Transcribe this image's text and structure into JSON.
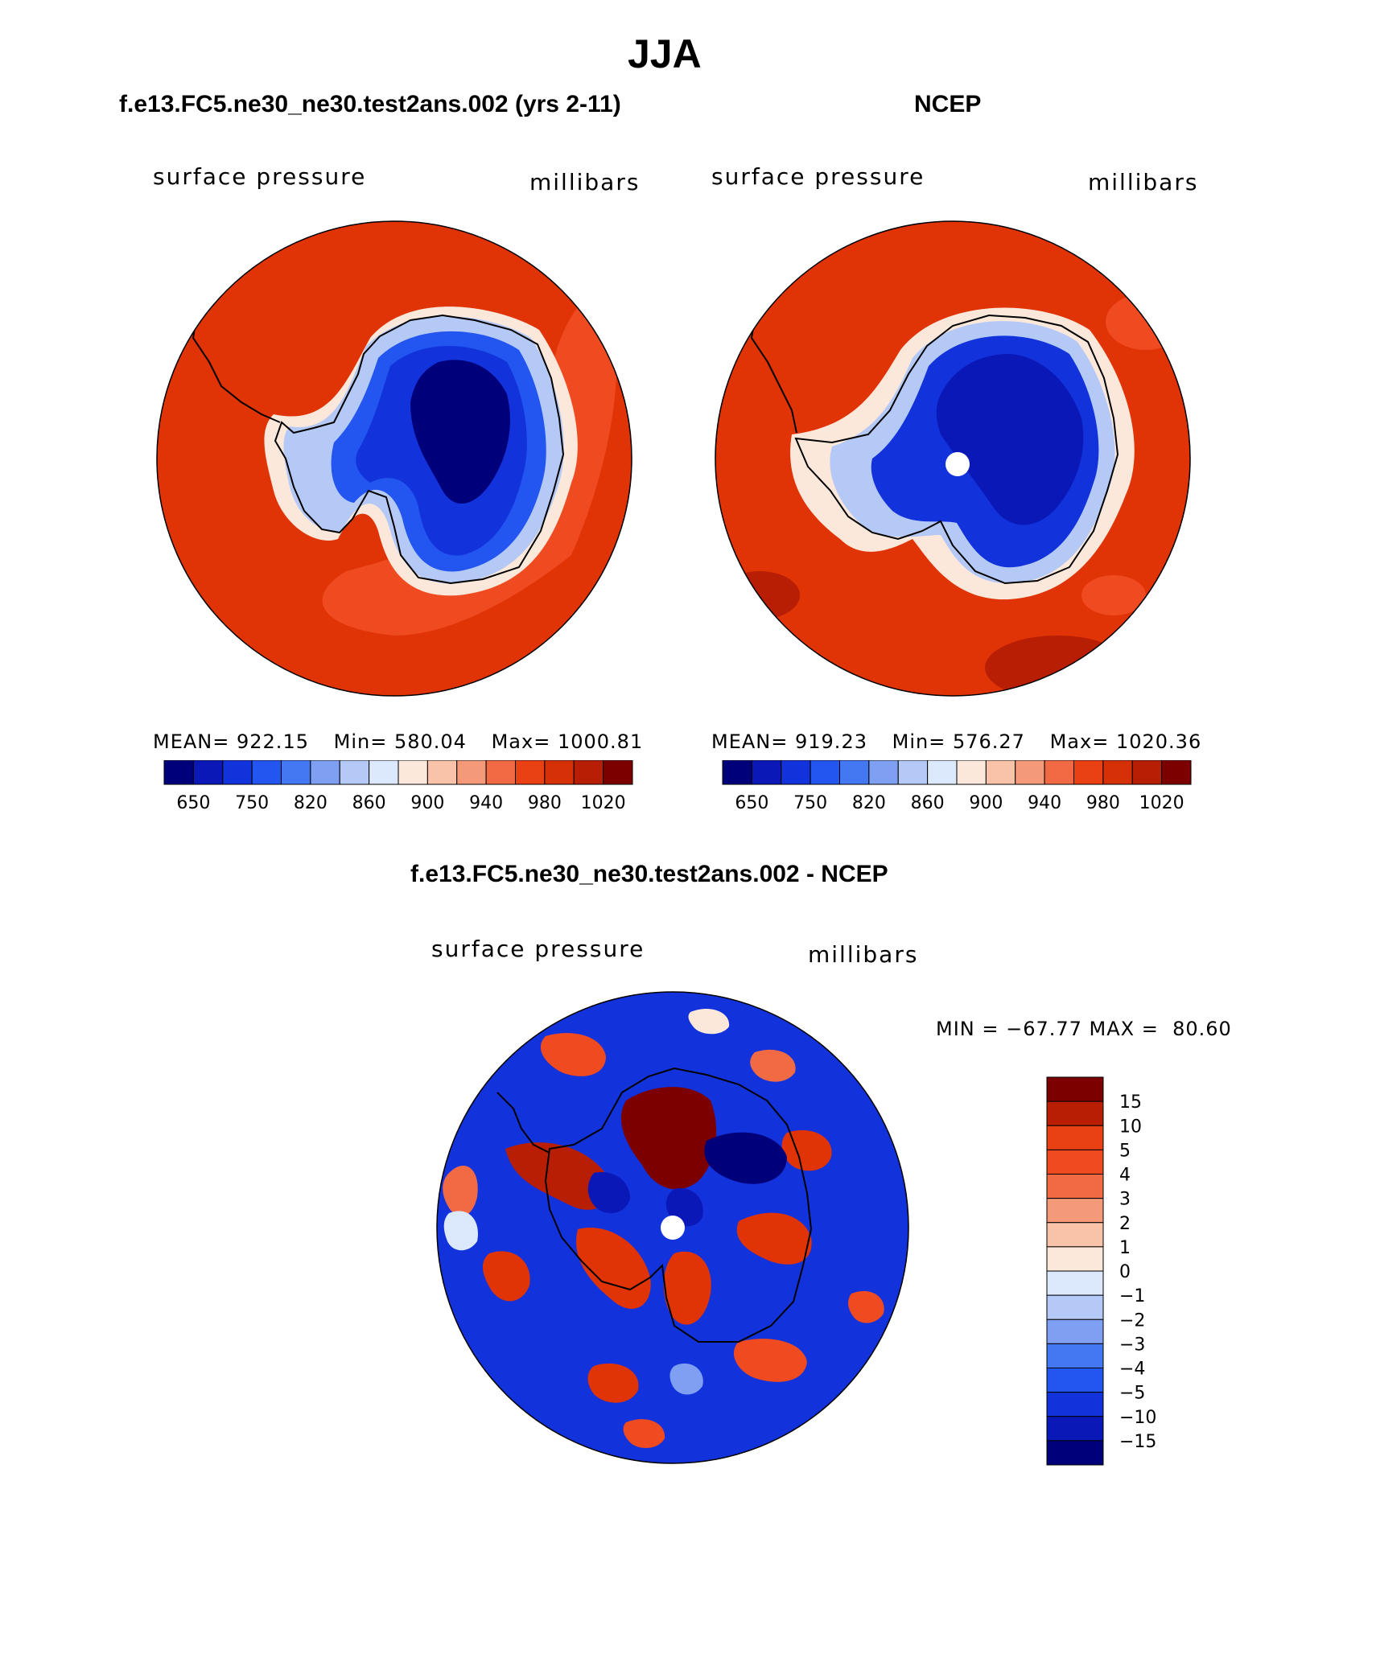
{
  "figure": {
    "season": "JJA",
    "colors": {
      "land_outline": "#000000",
      "missing": "#ffffff"
    }
  },
  "panels": [
    {
      "title": "f.e13.FC5.ne30_ne30.test2ans.002 (yrs 2-11)",
      "variable": "surface pressure",
      "units": "millibars",
      "stats": {
        "mean_label": "MEAN=",
        "mean": "922.15",
        "min_label": "Min=",
        "min": "580.04",
        "max_label": "Max=",
        "max": "1000.81"
      }
    },
    {
      "title": "NCEP",
      "variable": "surface pressure",
      "units": "millibars",
      "stats": {
        "mean_label": "MEAN=",
        "mean": "919.23",
        "min_label": "Min=",
        "min": "576.27",
        "max_label": "Max=",
        "max": "1020.36"
      }
    }
  ],
  "abs_colorbar": {
    "colors": [
      "#00007a",
      "#0b18b8",
      "#1233db",
      "#2356f0",
      "#4477f2",
      "#7fa0f2",
      "#b5c9f7",
      "#dce8fb",
      "#fce8da",
      "#f8c3a8",
      "#f59a78",
      "#f26a44",
      "#ea4114",
      "#d63008",
      "#b81e04",
      "#7d0000"
    ],
    "labels": [
      "650",
      "750",
      "820",
      "860",
      "900",
      "940",
      "980",
      "1020"
    ]
  },
  "diff_panel": {
    "title": "f.e13.FC5.ne30_ne30.test2ans.002 - NCEP",
    "variable": "surface pressure",
    "units": "millibars",
    "minmax_text": "MIN = −67.77 MAX =  80.60"
  },
  "diff_colorbar": {
    "colors": [
      "#7d0000",
      "#b81e04",
      "#ea4114",
      "#f04a20",
      "#f26a44",
      "#f59a78",
      "#f8c3a8",
      "#fce8da",
      "#dce8fb",
      "#b5c9f7",
      "#7fa0f2",
      "#4477f2",
      "#2356f0",
      "#1233db",
      "#0b18b8",
      "#00007a"
    ],
    "labels": [
      "15",
      "10",
      "5",
      "4",
      "3",
      "2",
      "1",
      "0",
      "−1",
      "−2",
      "−3",
      "−4",
      "−5",
      "−10",
      "−15"
    ]
  }
}
